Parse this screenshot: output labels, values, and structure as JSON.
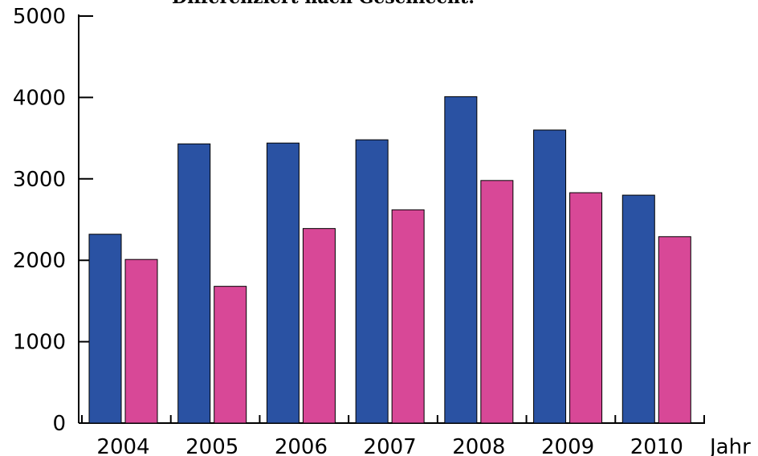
{
  "chart_data": {
    "type": "bar",
    "title": "Differenziert nach Geschlecht:",
    "xlabel": "Jahr",
    "ylabel": "",
    "ylim": [
      0,
      5000
    ],
    "yticks": [
      0,
      1000,
      2000,
      3000,
      4000,
      5000
    ],
    "categories": [
      "2004",
      "2005",
      "2006",
      "2007",
      "2008",
      "2009",
      "2010"
    ],
    "series": [
      {
        "color": "#2a52a3",
        "values": [
          2320,
          3430,
          3440,
          3480,
          4010,
          3600,
          2800
        ]
      },
      {
        "color": "#d84897",
        "values": [
          2010,
          1680,
          2390,
          2620,
          2980,
          2830,
          2290
        ]
      }
    ],
    "grid": false,
    "legend": "none"
  }
}
